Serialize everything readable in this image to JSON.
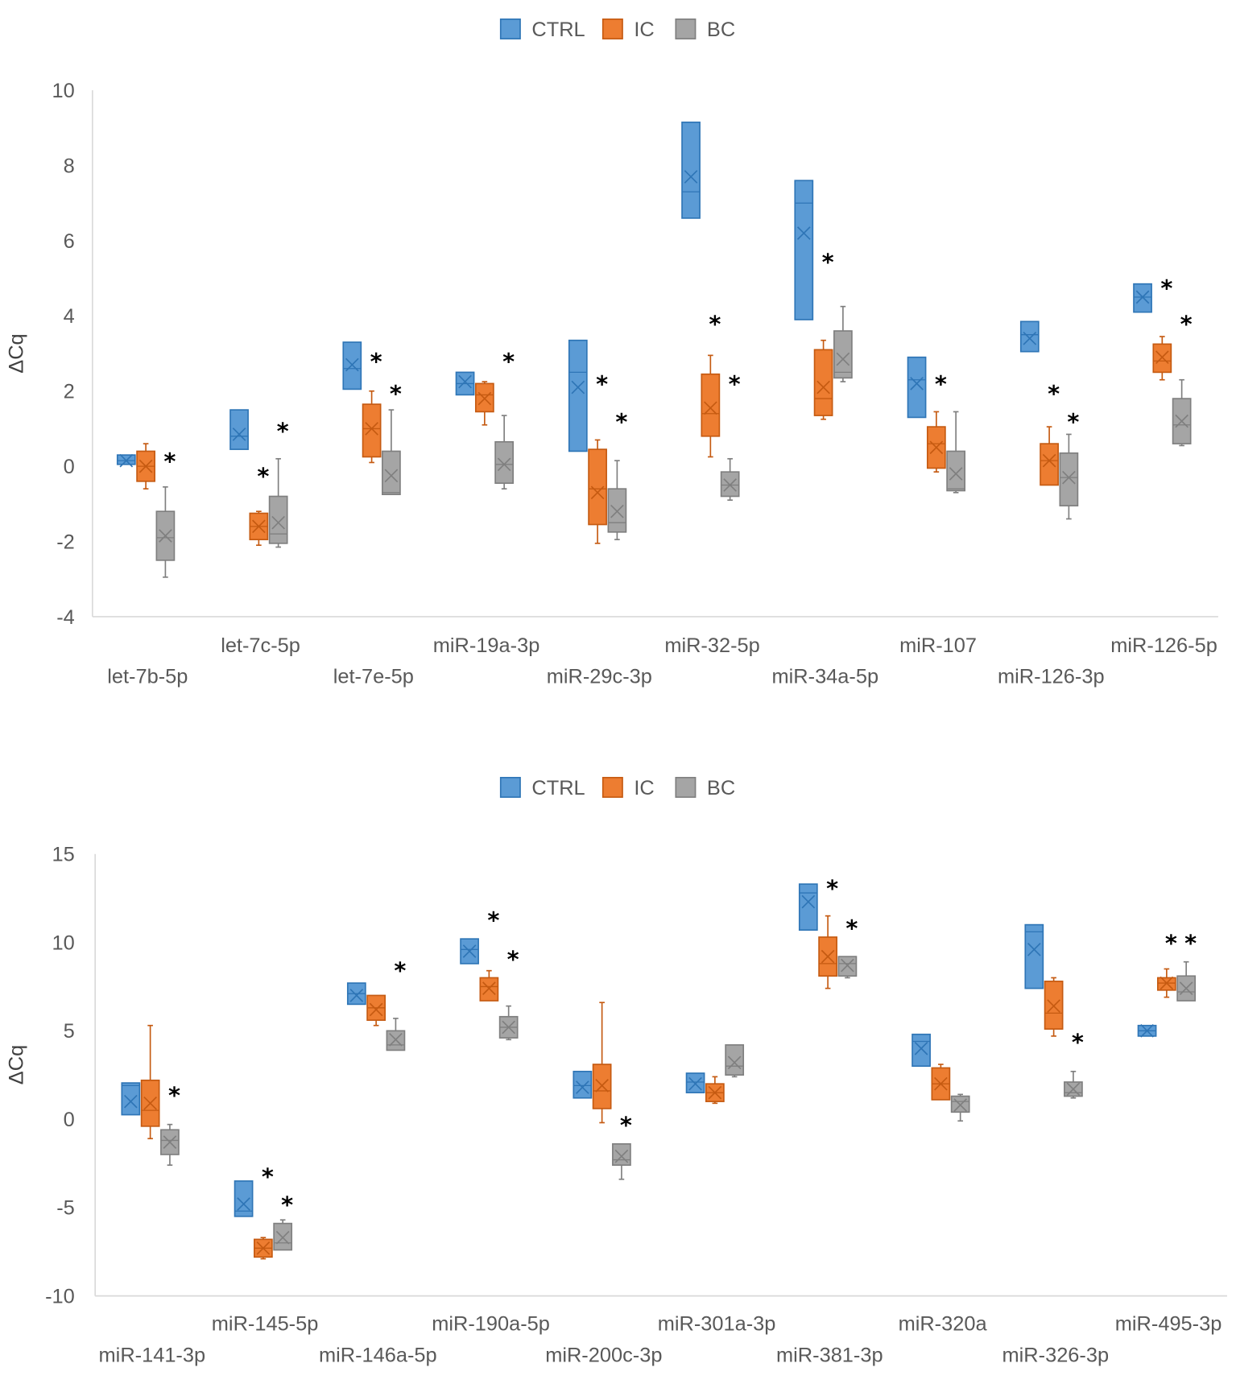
{
  "chart_data": [
    {
      "type": "box",
      "ylabel": "ΔCq",
      "ylim": [
        -4,
        10
      ],
      "yticks": [
        10,
        8,
        6,
        4,
        2,
        0,
        -2,
        -4
      ],
      "legend": {
        "placement": "top-center",
        "entries": [
          "CTRL",
          "IC",
          "BC"
        ]
      },
      "grid": false,
      "colors": {
        "CTRL": "#5B9BD5",
        "IC": "#ED7D31",
        "BC": "#A5A5A5"
      },
      "box_format": [
        "min",
        "q1",
        "median",
        "q3",
        "max",
        "mean"
      ],
      "categories": [
        "let-7b-5p",
        "let-7c-5p",
        "let-7e-5p",
        "miR-19a-3p",
        "miR-29c-3p",
        "miR-32-5p",
        "miR-34a-5p",
        "miR-107",
        "miR-126-3p",
        "miR-126-5p"
      ],
      "series": [
        {
          "name": "CTRL",
          "boxes": [
            [
              0.05,
              0.05,
              0.15,
              0.3,
              0.3,
              0.15
            ],
            [
              0.45,
              0.45,
              0.8,
              1.5,
              1.5,
              0.85
            ],
            [
              2.05,
              2.05,
              2.6,
              3.3,
              3.3,
              2.7
            ],
            [
              1.9,
              1.9,
              2.2,
              2.5,
              2.5,
              2.25
            ],
            [
              0.4,
              0.4,
              2.5,
              3.35,
              3.35,
              2.1
            ],
            [
              6.6,
              6.6,
              7.3,
              9.15,
              9.15,
              7.7
            ],
            [
              3.9,
              3.9,
              7.0,
              7.6,
              7.6,
              6.2
            ],
            [
              1.3,
              1.3,
              2.3,
              2.9,
              2.9,
              2.2
            ],
            [
              3.05,
              3.05,
              3.5,
              3.85,
              3.85,
              3.4
            ],
            [
              4.1,
              4.1,
              4.5,
              4.85,
              4.85,
              4.5
            ]
          ]
        },
        {
          "name": "IC",
          "boxes": [
            [
              -0.6,
              -0.4,
              0,
              0.4,
              0.6,
              0
            ],
            [
              -2.1,
              -1.95,
              -1.6,
              -1.25,
              -1.2,
              -1.6
            ],
            [
              0.1,
              0.25,
              1.0,
              1.65,
              2.0,
              1.0
            ],
            [
              1.1,
              1.45,
              1.9,
              2.2,
              2.25,
              1.8
            ],
            [
              -2.05,
              -1.55,
              -0.6,
              0.45,
              0.7,
              -0.7
            ],
            [
              0.25,
              0.8,
              1.4,
              2.45,
              2.95,
              1.55
            ],
            [
              1.25,
              1.35,
              1.8,
              3.1,
              3.35,
              2.1
            ],
            [
              -0.15,
              -0.05,
              0.6,
              1.05,
              1.45,
              0.5
            ],
            [
              -0.5,
              -0.5,
              0.15,
              0.6,
              1.05,
              0.15
            ],
            [
              2.3,
              2.5,
              2.8,
              3.25,
              3.45,
              2.9
            ]
          ]
        },
        {
          "name": "BC",
          "boxes": [
            [
              -2.95,
              -2.5,
              -1.9,
              -1.2,
              -0.55,
              -1.85
            ],
            [
              -2.15,
              -2.05,
              -1.8,
              -0.8,
              0.2,
              -1.5
            ],
            [
              -0.75,
              -0.75,
              -0.7,
              0.4,
              1.5,
              -0.25
            ],
            [
              -0.6,
              -0.45,
              0.05,
              0.65,
              1.35,
              0.05
            ],
            [
              -1.95,
              -1.75,
              -1.5,
              -0.6,
              0.15,
              -1.2
            ],
            [
              -0.9,
              -0.8,
              -0.5,
              -0.15,
              0.2,
              -0.5
            ],
            [
              2.25,
              2.35,
              2.5,
              3.6,
              4.25,
              2.85
            ],
            [
              -0.7,
              -0.65,
              -0.6,
              0.4,
              1.45,
              -0.2
            ],
            [
              -1.4,
              -1.05,
              -0.3,
              0.35,
              0.85,
              -0.3
            ],
            [
              0.55,
              0.6,
              1.1,
              1.8,
              2.3,
              1.2
            ]
          ]
        }
      ],
      "significance": [
        {
          "category": 0,
          "series": "BC",
          "y": 0.25
        },
        {
          "category": 1,
          "series": "IC",
          "y": -0.15
        },
        {
          "category": 1,
          "series": "BC",
          "y": 1.05
        },
        {
          "category": 2,
          "series": "IC",
          "y": 2.9
        },
        {
          "category": 2,
          "series": "BC",
          "y": 2.05
        },
        {
          "category": 3,
          "series": "BC",
          "y": 2.9
        },
        {
          "category": 4,
          "series": "IC",
          "y": 2.3
        },
        {
          "category": 4,
          "series": "BC",
          "y": 1.3
        },
        {
          "category": 5,
          "series": "IC",
          "y": 3.9
        },
        {
          "category": 5,
          "series": "BC",
          "y": 2.3
        },
        {
          "category": 6,
          "series": "IC",
          "y": 5.55
        },
        {
          "category": 7,
          "series": "IC",
          "y": 2.3
        },
        {
          "category": 8,
          "series": "IC",
          "y": 2.05
        },
        {
          "category": 8,
          "series": "BC",
          "y": 1.3
        },
        {
          "category": 9,
          "series": "IC",
          "y": 4.85
        },
        {
          "category": 9,
          "series": "BC",
          "y": 3.9
        }
      ],
      "star_symbol": "*"
    },
    {
      "type": "box",
      "ylabel": "ΔCq",
      "ylim": [
        -10,
        15
      ],
      "yticks": [
        15,
        10,
        5,
        0,
        -5,
        -10
      ],
      "legend": {
        "placement": "top-center",
        "entries": [
          "CTRL",
          "IC",
          "BC"
        ]
      },
      "grid": false,
      "colors": {
        "CTRL": "#5B9BD5",
        "IC": "#ED7D31",
        "BC": "#A5A5A5"
      },
      "box_format": [
        "min",
        "q1",
        "median",
        "q3",
        "max",
        "mean"
      ],
      "categories": [
        "miR-141-3p",
        "miR-145-5p",
        "miR-146a-5p",
        "miR-190a-5p",
        "miR-200c-3p",
        "miR-301a-3p",
        "miR-381-3p",
        "miR-320a",
        "miR-326-3p",
        "miR-495-3p"
      ],
      "series": [
        {
          "name": "CTRL",
          "boxes": [
            [
              0.25,
              0.25,
              1.9,
              2.05,
              2.05,
              1.0
            ],
            [
              -5.5,
              -5.5,
              -5.2,
              -3.5,
              -3.5,
              -4.8
            ],
            [
              6.5,
              6.5,
              7.1,
              7.7,
              7.7,
              7.0
            ],
            [
              8.8,
              8.8,
              9.6,
              10.2,
              10.2,
              9.5
            ],
            [
              1.2,
              1.2,
              1.9,
              2.7,
              2.7,
              1.8
            ],
            [
              1.5,
              1.5,
              2.1,
              2.6,
              2.6,
              2.0
            ],
            [
              10.7,
              10.7,
              12.8,
              13.3,
              13.3,
              12.3
            ],
            [
              3.0,
              3.0,
              4.4,
              4.8,
              4.8,
              4.0
            ],
            [
              7.4,
              7.4,
              10.6,
              11.0,
              11.0,
              9.6
            ],
            [
              4.7,
              4.7,
              5.0,
              5.3,
              5.3,
              5.0
            ]
          ]
        },
        {
          "name": "IC",
          "boxes": [
            [
              -1.1,
              -0.4,
              0.5,
              2.2,
              5.3,
              0.9
            ],
            [
              -7.9,
              -7.8,
              -7.3,
              -6.8,
              -6.7,
              -7.3
            ],
            [
              5.3,
              5.6,
              6.3,
              7.0,
              7.0,
              6.2
            ],
            [
              6.7,
              6.7,
              7.5,
              8.0,
              8.4,
              7.4
            ],
            [
              -0.2,
              0.6,
              1.6,
              3.1,
              6.6,
              1.9
            ],
            [
              0.9,
              1.0,
              1.5,
              2.0,
              2.4,
              1.5
            ],
            [
              7.4,
              8.1,
              8.8,
              10.3,
              11.5,
              9.2
            ],
            [
              1.1,
              1.1,
              2.0,
              2.9,
              3.1,
              2.0
            ],
            [
              4.7,
              5.1,
              6.0,
              7.8,
              8.0,
              6.4
            ],
            [
              6.9,
              7.3,
              7.7,
              8.0,
              8.5,
              7.7
            ]
          ]
        },
        {
          "name": "BC",
          "boxes": [
            [
              -2.6,
              -2.0,
              -1.2,
              -0.6,
              -0.3,
              -1.3
            ],
            [
              -7.4,
              -7.4,
              -7.0,
              -5.9,
              -5.7,
              -6.7
            ],
            [
              3.9,
              3.9,
              4.2,
              5.0,
              5.7,
              4.5
            ],
            [
              4.5,
              4.6,
              5.2,
              5.8,
              6.4,
              5.2
            ],
            [
              -3.4,
              -2.6,
              -2.3,
              -1.4,
              -1.4,
              -2.1
            ],
            [
              2.4,
              2.5,
              3.0,
              4.2,
              4.2,
              3.2
            ],
            [
              8.0,
              8.1,
              8.8,
              9.2,
              9.2,
              8.7
            ],
            [
              -0.1,
              0.4,
              1.0,
              1.3,
              1.4,
              0.8
            ],
            [
              1.2,
              1.3,
              1.5,
              2.1,
              2.7,
              1.7
            ],
            [
              6.7,
              6.7,
              7.2,
              8.1,
              8.9,
              7.4
            ]
          ]
        }
      ],
      "significance": [
        {
          "category": 0,
          "series": "BC",
          "y": 1.6
        },
        {
          "category": 1,
          "series": "IC",
          "y": -3.0
        },
        {
          "category": 1,
          "series": "BC",
          "y": -4.6
        },
        {
          "category": 2,
          "series": "BC",
          "y": 8.65
        },
        {
          "category": 3,
          "series": "IC",
          "y": 11.5
        },
        {
          "category": 3,
          "series": "BC",
          "y": 9.3
        },
        {
          "category": 4,
          "series": "BC",
          "y": -0.1
        },
        {
          "category": 6,
          "series": "IC",
          "y": 13.3
        },
        {
          "category": 6,
          "series": "BC",
          "y": 11.05
        },
        {
          "category": 8,
          "series": "BC",
          "y": 4.6
        },
        {
          "category": 9,
          "series": "IC",
          "y": 10.2
        },
        {
          "category": 9,
          "series": "BC",
          "y": 10.2
        }
      ],
      "star_symbol": "*"
    }
  ]
}
